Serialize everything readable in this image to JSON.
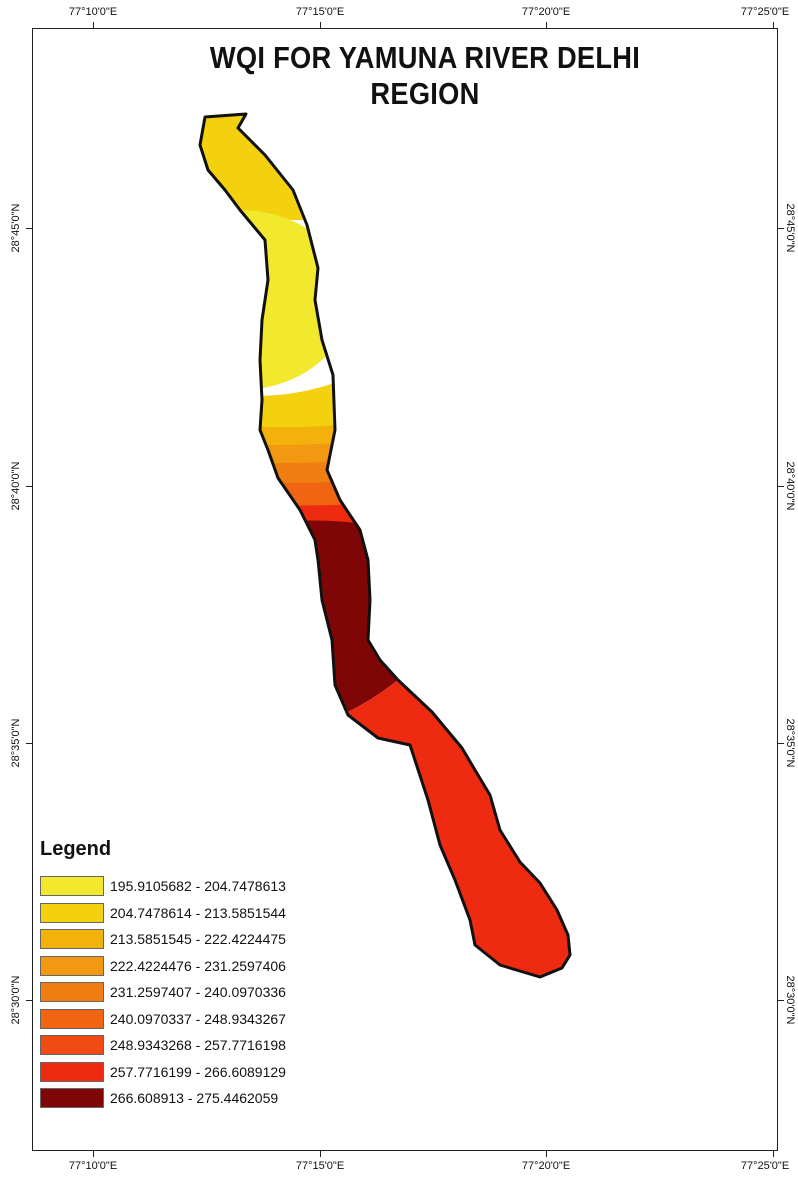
{
  "title": "WQI FOR YAMUNA RIVER DELHI REGION",
  "longitude_labels": [
    "77°10'0\"E",
    "77°15'0\"E",
    "77°20'0\"E",
    "77°25'0\"E"
  ],
  "latitude_labels": [
    "28°45'0\"N",
    "28°40'0\"N",
    "28°35'0\"N",
    "28°30'0\"N"
  ],
  "legend": {
    "title": "Legend",
    "items": [
      {
        "label": "195.9105682 - 204.7478613",
        "color": "#f2e82e"
      },
      {
        "label": "204.7478614 - 213.5851544",
        "color": "#f3d10e"
      },
      {
        "label": "213.5851545 - 222.4224475",
        "color": "#f3b20b"
      },
      {
        "label": "222.4224476 - 231.2597406",
        "color": "#f29811"
      },
      {
        "label": "231.2597407 - 240.0970336",
        "color": "#f17e12"
      },
      {
        "label": "240.0970337 - 248.9343267",
        "color": "#f06412"
      },
      {
        "label": "248.9343268 - 257.7716198",
        "color": "#ef4a12"
      },
      {
        "label": "257.7716199 - 266.6089129",
        "color": "#ee2a10"
      },
      {
        "label": "266.608913 - 275.4462059",
        "color": "#7e0606"
      }
    ]
  }
}
